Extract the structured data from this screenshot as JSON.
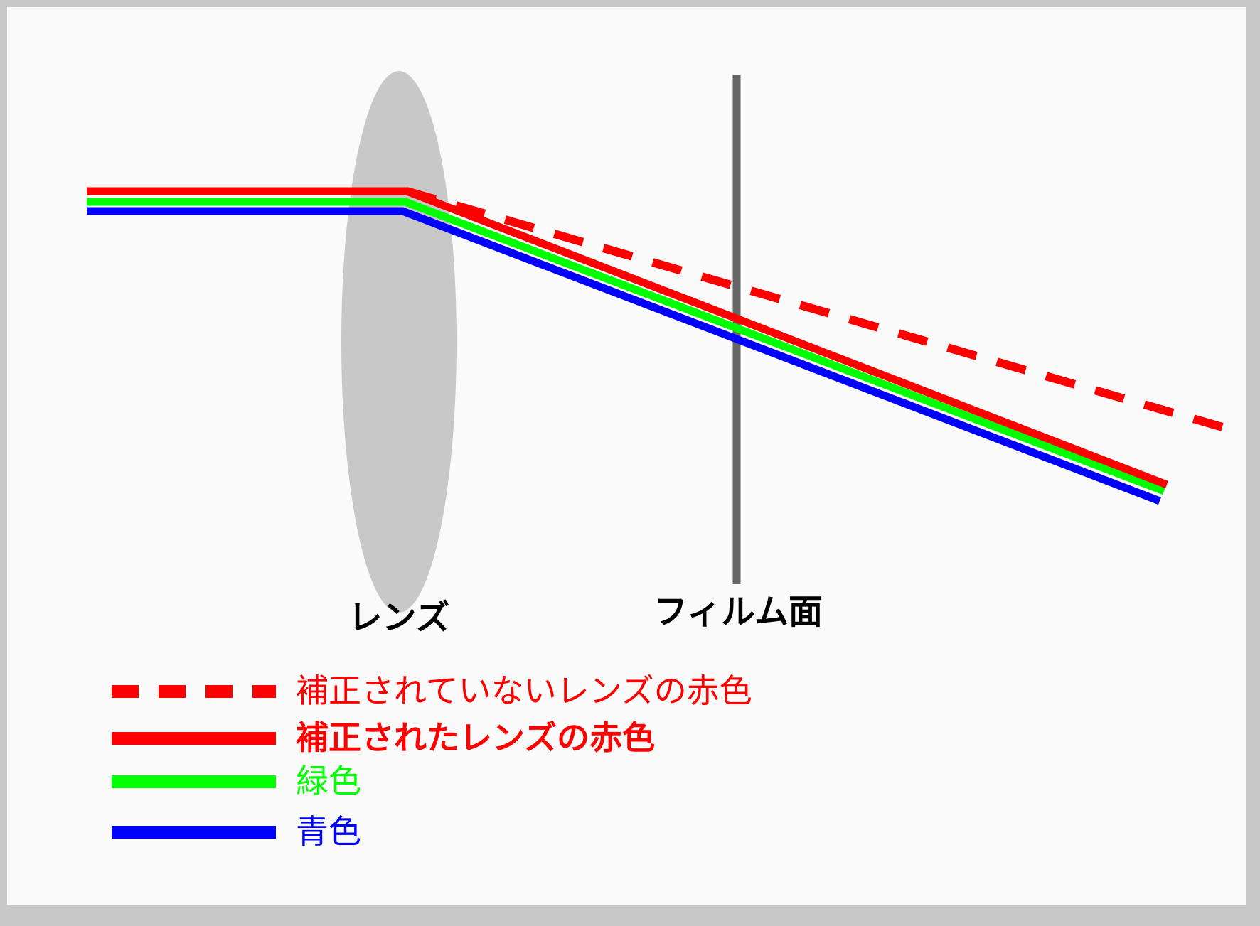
{
  "labels": {
    "lens": "レンズ",
    "film_plane": "フィルム面"
  },
  "legend": [
    {
      "key": "uncorrected_red",
      "label": "補正されていないレンズの赤色",
      "color": "#ff0000",
      "style": "dashed",
      "bold": false
    },
    {
      "key": "corrected_red",
      "label": "補正されたレンズの赤色",
      "color": "#ff0000",
      "style": "solid",
      "bold": true
    },
    {
      "key": "green",
      "label": "緑色",
      "color": "#00ff00",
      "style": "solid",
      "bold": false
    },
    {
      "key": "blue",
      "label": "青色",
      "color": "#0000ff",
      "style": "solid",
      "bold": false
    }
  ],
  "colors": {
    "background": "#fafafa",
    "frame": "#c8c8c8",
    "lens": "#c8c8c8",
    "film_plane": "#666666",
    "label_text": "#000000"
  }
}
